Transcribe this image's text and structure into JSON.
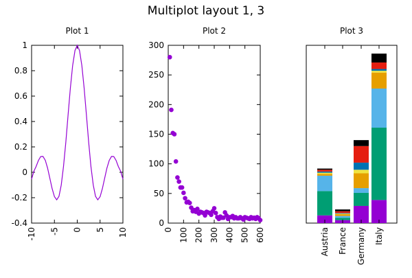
{
  "title": "Multiplot layout 1, 3",
  "colors": {
    "axis": "#000000",
    "line": "#9400d3",
    "stack": [
      "#9400d3",
      "#009e73",
      "#56b4e9",
      "#e69f00",
      "#f0e442",
      "#0072b2",
      "#e51e10",
      "#000000"
    ]
  },
  "chart_data": [
    {
      "type": "line",
      "title": "Plot 1",
      "xlim": [
        -10,
        10
      ],
      "ylim": [
        -0.4,
        1
      ],
      "xticks": [
        "-10",
        "-5",
        "0",
        "5",
        "10"
      ],
      "xtick_values": [
        -10,
        -5,
        0,
        5,
        10
      ],
      "yticks": [
        "-0.4",
        "-0.2",
        "0",
        "0.2",
        "0.4",
        "0.6",
        "0.8",
        "1"
      ],
      "ytick_values": [
        -0.4,
        -0.2,
        0,
        0.2,
        0.4,
        0.6,
        0.8,
        1
      ],
      "series": [
        {
          "x": [
            -10,
            -9.5,
            -9,
            -8.5,
            -8,
            -7.5,
            -7,
            -6.5,
            -6,
            -5.5,
            -5,
            -4.5,
            -4,
            -3.5,
            -3,
            -2.5,
            -2,
            -1.5,
            -1,
            -0.5,
            0,
            0.5,
            1,
            1.5,
            2,
            2.5,
            3,
            3.5,
            4,
            4.5,
            5,
            5.5,
            6,
            6.5,
            7,
            7.5,
            8,
            8.5,
            9,
            9.5,
            10
          ],
          "y": [
            -0.054,
            0.008,
            0.046,
            0.094,
            0.124,
            0.125,
            0.094,
            0.033,
            -0.047,
            -0.128,
            -0.192,
            -0.217,
            -0.189,
            -0.1,
            0.047,
            0.239,
            0.455,
            0.665,
            0.841,
            0.959,
            1.0,
            0.959,
            0.841,
            0.665,
            0.455,
            0.239,
            0.047,
            -0.1,
            -0.189,
            -0.217,
            -0.192,
            -0.128,
            -0.047,
            0.033,
            0.094,
            0.125,
            0.124,
            0.094,
            0.046,
            0.008,
            -0.054
          ]
        }
      ]
    },
    {
      "type": "scatter",
      "title": "Plot 2",
      "xlim": [
        0,
        600
      ],
      "ylim": [
        0,
        300
      ],
      "xticks": [
        "0",
        "100",
        "200",
        "300",
        "400",
        "500",
        "600"
      ],
      "xtick_values": [
        0,
        100,
        200,
        300,
        400,
        500,
        600
      ],
      "yticks": [
        "0",
        "50",
        "100",
        "150",
        "200",
        "250",
        "300"
      ],
      "ytick_values": [
        0,
        50,
        100,
        150,
        200,
        250,
        300
      ],
      "series": [
        {
          "x": [
            10,
            20,
            30,
            40,
            50,
            60,
            70,
            80,
            90,
            100,
            110,
            120,
            130,
            140,
            150,
            160,
            170,
            180,
            190,
            200,
            210,
            220,
            230,
            240,
            250,
            260,
            270,
            280,
            290,
            300,
            310,
            320,
            330,
            340,
            350,
            360,
            370,
            380,
            390,
            400,
            410,
            420,
            430,
            440,
            450,
            460,
            470,
            480,
            490,
            500,
            510,
            520,
            530,
            540,
            550,
            560,
            570,
            580,
            590,
            600
          ],
          "y": [
            280,
            191,
            152,
            150,
            104,
            77,
            70,
            60,
            60,
            51,
            42,
            35,
            36,
            34,
            26,
            20,
            22,
            19,
            24,
            16,
            19,
            18,
            17,
            13,
            19,
            18,
            17,
            14,
            20,
            25,
            17,
            10,
            7,
            11,
            9,
            9,
            18,
            13,
            7,
            10,
            10,
            12,
            8,
            10,
            8,
            8,
            10,
            8,
            6,
            10,
            9,
            8,
            7,
            10,
            8,
            9,
            7,
            10,
            8,
            5
          ]
        }
      ]
    },
    {
      "type": "bar",
      "stacked": true,
      "title": "Plot 3",
      "categories": [
        "Austria",
        "France",
        "Germany",
        "Italy"
      ],
      "ylim": [
        0,
        300
      ],
      "series": [
        {
          "values": [
            13,
            5,
            29,
            39
          ]
        },
        {
          "values": [
            41,
            4,
            22,
            122
          ]
        },
        {
          "values": [
            26,
            3,
            8,
            66
          ]
        },
        {
          "values": [
            3,
            3,
            25,
            27
          ]
        },
        {
          "values": [
            2,
            1,
            6,
            3
          ]
        },
        {
          "values": [
            2,
            1,
            12,
            3
          ]
        },
        {
          "values": [
            3,
            3,
            28,
            11
          ]
        },
        {
          "values": [
            2,
            3,
            10,
            15
          ]
        }
      ]
    }
  ]
}
